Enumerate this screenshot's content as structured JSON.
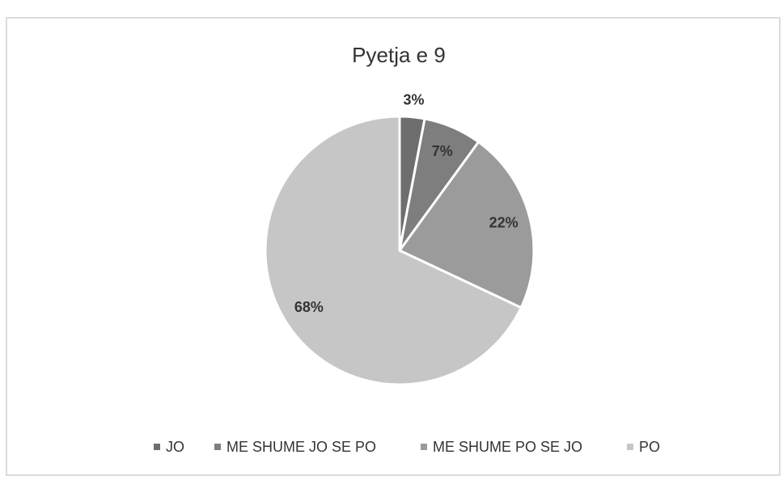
{
  "chart_data": {
    "type": "pie",
    "title": "Pyetja e 9",
    "categories": [
      "JO",
      "ME SHUME JO SE PO",
      "ME SHUME PO SE JO",
      "PO"
    ],
    "values": [
      3,
      7,
      22,
      68
    ],
    "value_labels": [
      "3%",
      "7%",
      "22%",
      "68%"
    ],
    "colors": [
      "#6e6e6e",
      "#7e7e7e",
      "#9b9b9b",
      "#c6c6c6"
    ],
    "legend": "bottom"
  }
}
